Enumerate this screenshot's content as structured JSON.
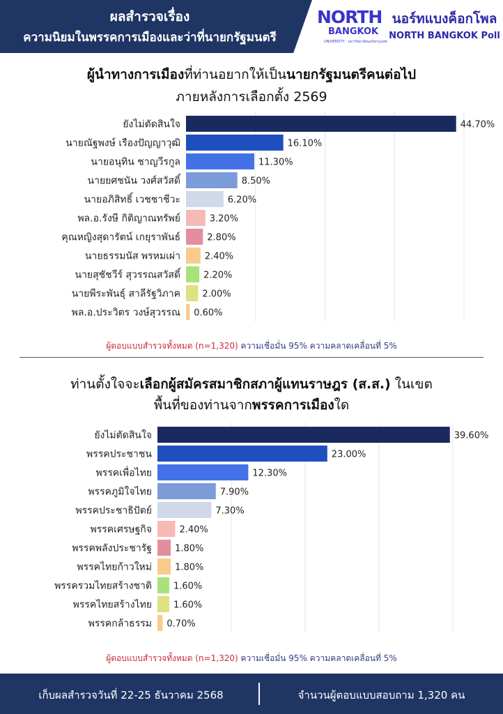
{
  "header": {
    "title_line1": "ผลสำรวจเรื่อง",
    "title_line2": "ความนิยมในพรรคการเมืองและว่าที่นายกรัฐมนตรี",
    "logo_north": "NORTH",
    "logo_bangkok": "BANGKOK",
    "logo_university": "UNIVERSITY · มหาวิทยาลัยนอร์ทกรุงเทพ",
    "poll_thai": "นอร์ทแบงค็อกโพล",
    "poll_english": "NORTH BANGKOK Poll",
    "brand_color": "#1f3564"
  },
  "chart1_title": {
    "l1_bold1": "ผู้นำทางการเมือง",
    "l1_normal": "ที่ท่านอยากให้เป็น",
    "l1_bold2": "นายกรัฐมนตรีคนต่อไป",
    "l2": "ภายหลังการเลือกตั้ง 2569"
  },
  "chart2_title": {
    "l1_normal1": "ท่านตั้งใจจะ",
    "l1_bold": "เลือกผู้สมัครสมาชิกสภาผู้แทนราษฎร (ส.ส.)",
    "l1_normal2": " ในเขต",
    "l2_normal": "พื้นที่ของท่านจาก",
    "l2_bold": "พรรคการเมือง",
    "l2_end": "ใด"
  },
  "footnote": {
    "red": "ผู้ตอบแบบสำรวจทั้งหมด (n=1,320)",
    "blue": " ความเชื่อมั่น 95% ความคลาดเคลื่อนที่ 5%"
  },
  "footer": {
    "left": "เก็บผลสำรวจวันที่ 22-25 ธันวาคม 2568",
    "right": "จำนวนผู้ตอบแบบสอบถาม 1,320 คน"
  },
  "chart_data": [
    {
      "type": "bar",
      "orientation": "horizontal",
      "categories": [
        "ยังไม่ตัดสินใจ",
        "นายณัฐพงษ์ เรืองปัญญาวุฒิ",
        "นายอนุทิน ชาญวีรกูล",
        "นายยศชนัน วงศ์สวัสดิ์",
        "นายอภิสิทธิ์ เวชชาชีวะ",
        "พล.อ.รังษี กิติญาณทรัพย์",
        "คุณหญิงสุดารัตน์ เกยุราพันธ์",
        "นายธรรมนัส พรหมเผ่า",
        "นายสุชัชวีร์ สุวรรณสวัสดิ์",
        "นายพีระพันธุ์ สาลีรัฐวิภาค",
        "พล.อ.ประวิตร วงษ์สุวรรณ"
      ],
      "values": [
        44.7,
        16.1,
        11.3,
        8.5,
        6.2,
        3.2,
        2.8,
        2.4,
        2.2,
        2.0,
        0.6
      ],
      "value_labels": [
        "44.70%",
        "16.10%",
        "11.30%",
        "8.50%",
        "6.20%",
        "3.20%",
        "2.80%",
        "2.40%",
        "2.20%",
        "2.00%",
        "0.60%"
      ],
      "colors": [
        "#1a2a5e",
        "#1e4fbf",
        "#4472e6",
        "#7b9bd9",
        "#d0d9ea",
        "#f7b9b3",
        "#e38d9f",
        "#f9cb8c",
        "#a9e27a",
        "#dfe07e",
        "#f9cb8c"
      ],
      "xlim": [
        0,
        46
      ]
    },
    {
      "type": "bar",
      "orientation": "horizontal",
      "categories": [
        "ยังไม่ตัดสินใจ",
        "พรรคประชาชน",
        "พรรคเพื่อไทย",
        "พรรคภูมิใจไทย",
        "พรรคประชาธิปัตย์",
        "พรรคเศรษฐกิจ",
        "พรรคพลังประชารัฐ",
        "พรรคไทยก้าวใหม่",
        "พรรครวมไทยสร้างชาติ",
        "พรรคไทยสร้างไทย",
        "พรรคกล้าธรรม"
      ],
      "values": [
        39.6,
        23.0,
        12.3,
        7.9,
        7.3,
        2.4,
        1.8,
        1.8,
        1.6,
        1.6,
        0.7
      ],
      "value_labels": [
        "39.60%",
        "23.00%",
        "12.30%",
        "7.90%",
        "7.30%",
        "2.40%",
        "1.80%",
        "1.80%",
        "1.60%",
        "1.60%",
        "0.70%"
      ],
      "colors": [
        "#1a2a5e",
        "#1e4fbf",
        "#4472e6",
        "#7b9bd9",
        "#d0d9ea",
        "#f7b9b3",
        "#e38d9f",
        "#f9cb8c",
        "#a9e27a",
        "#dfe07e",
        "#f9cb8c"
      ],
      "xlim": [
        0,
        40
      ]
    }
  ]
}
